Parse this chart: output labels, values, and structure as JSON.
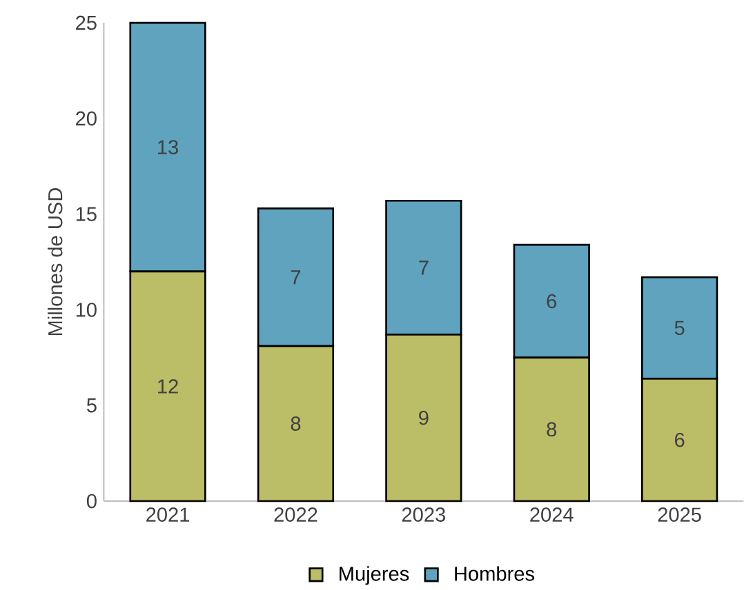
{
  "chart_data": {
    "type": "bar",
    "stacked": true,
    "ylabel": "Millones de USD",
    "categories": [
      "2021",
      "2022",
      "2023",
      "2024",
      "2025"
    ],
    "series": [
      {
        "name": "Mujeres",
        "color": "#bcbd67",
        "values": [
          12.0,
          8.1,
          8.7,
          7.5,
          6.4
        ],
        "value_labels": [
          "12",
          "8",
          "9",
          "8",
          "6"
        ]
      },
      {
        "name": "Hombres",
        "color": "#5fa3bf",
        "values": [
          13.0,
          7.2,
          7.0,
          5.9,
          5.3
        ],
        "value_labels": [
          "13",
          "7",
          "7",
          "6",
          "5"
        ]
      }
    ],
    "ylim": [
      0,
      25
    ],
    "yticks": [
      0,
      5,
      10,
      15,
      20,
      25
    ],
    "grid": false,
    "legend": "bottom"
  }
}
